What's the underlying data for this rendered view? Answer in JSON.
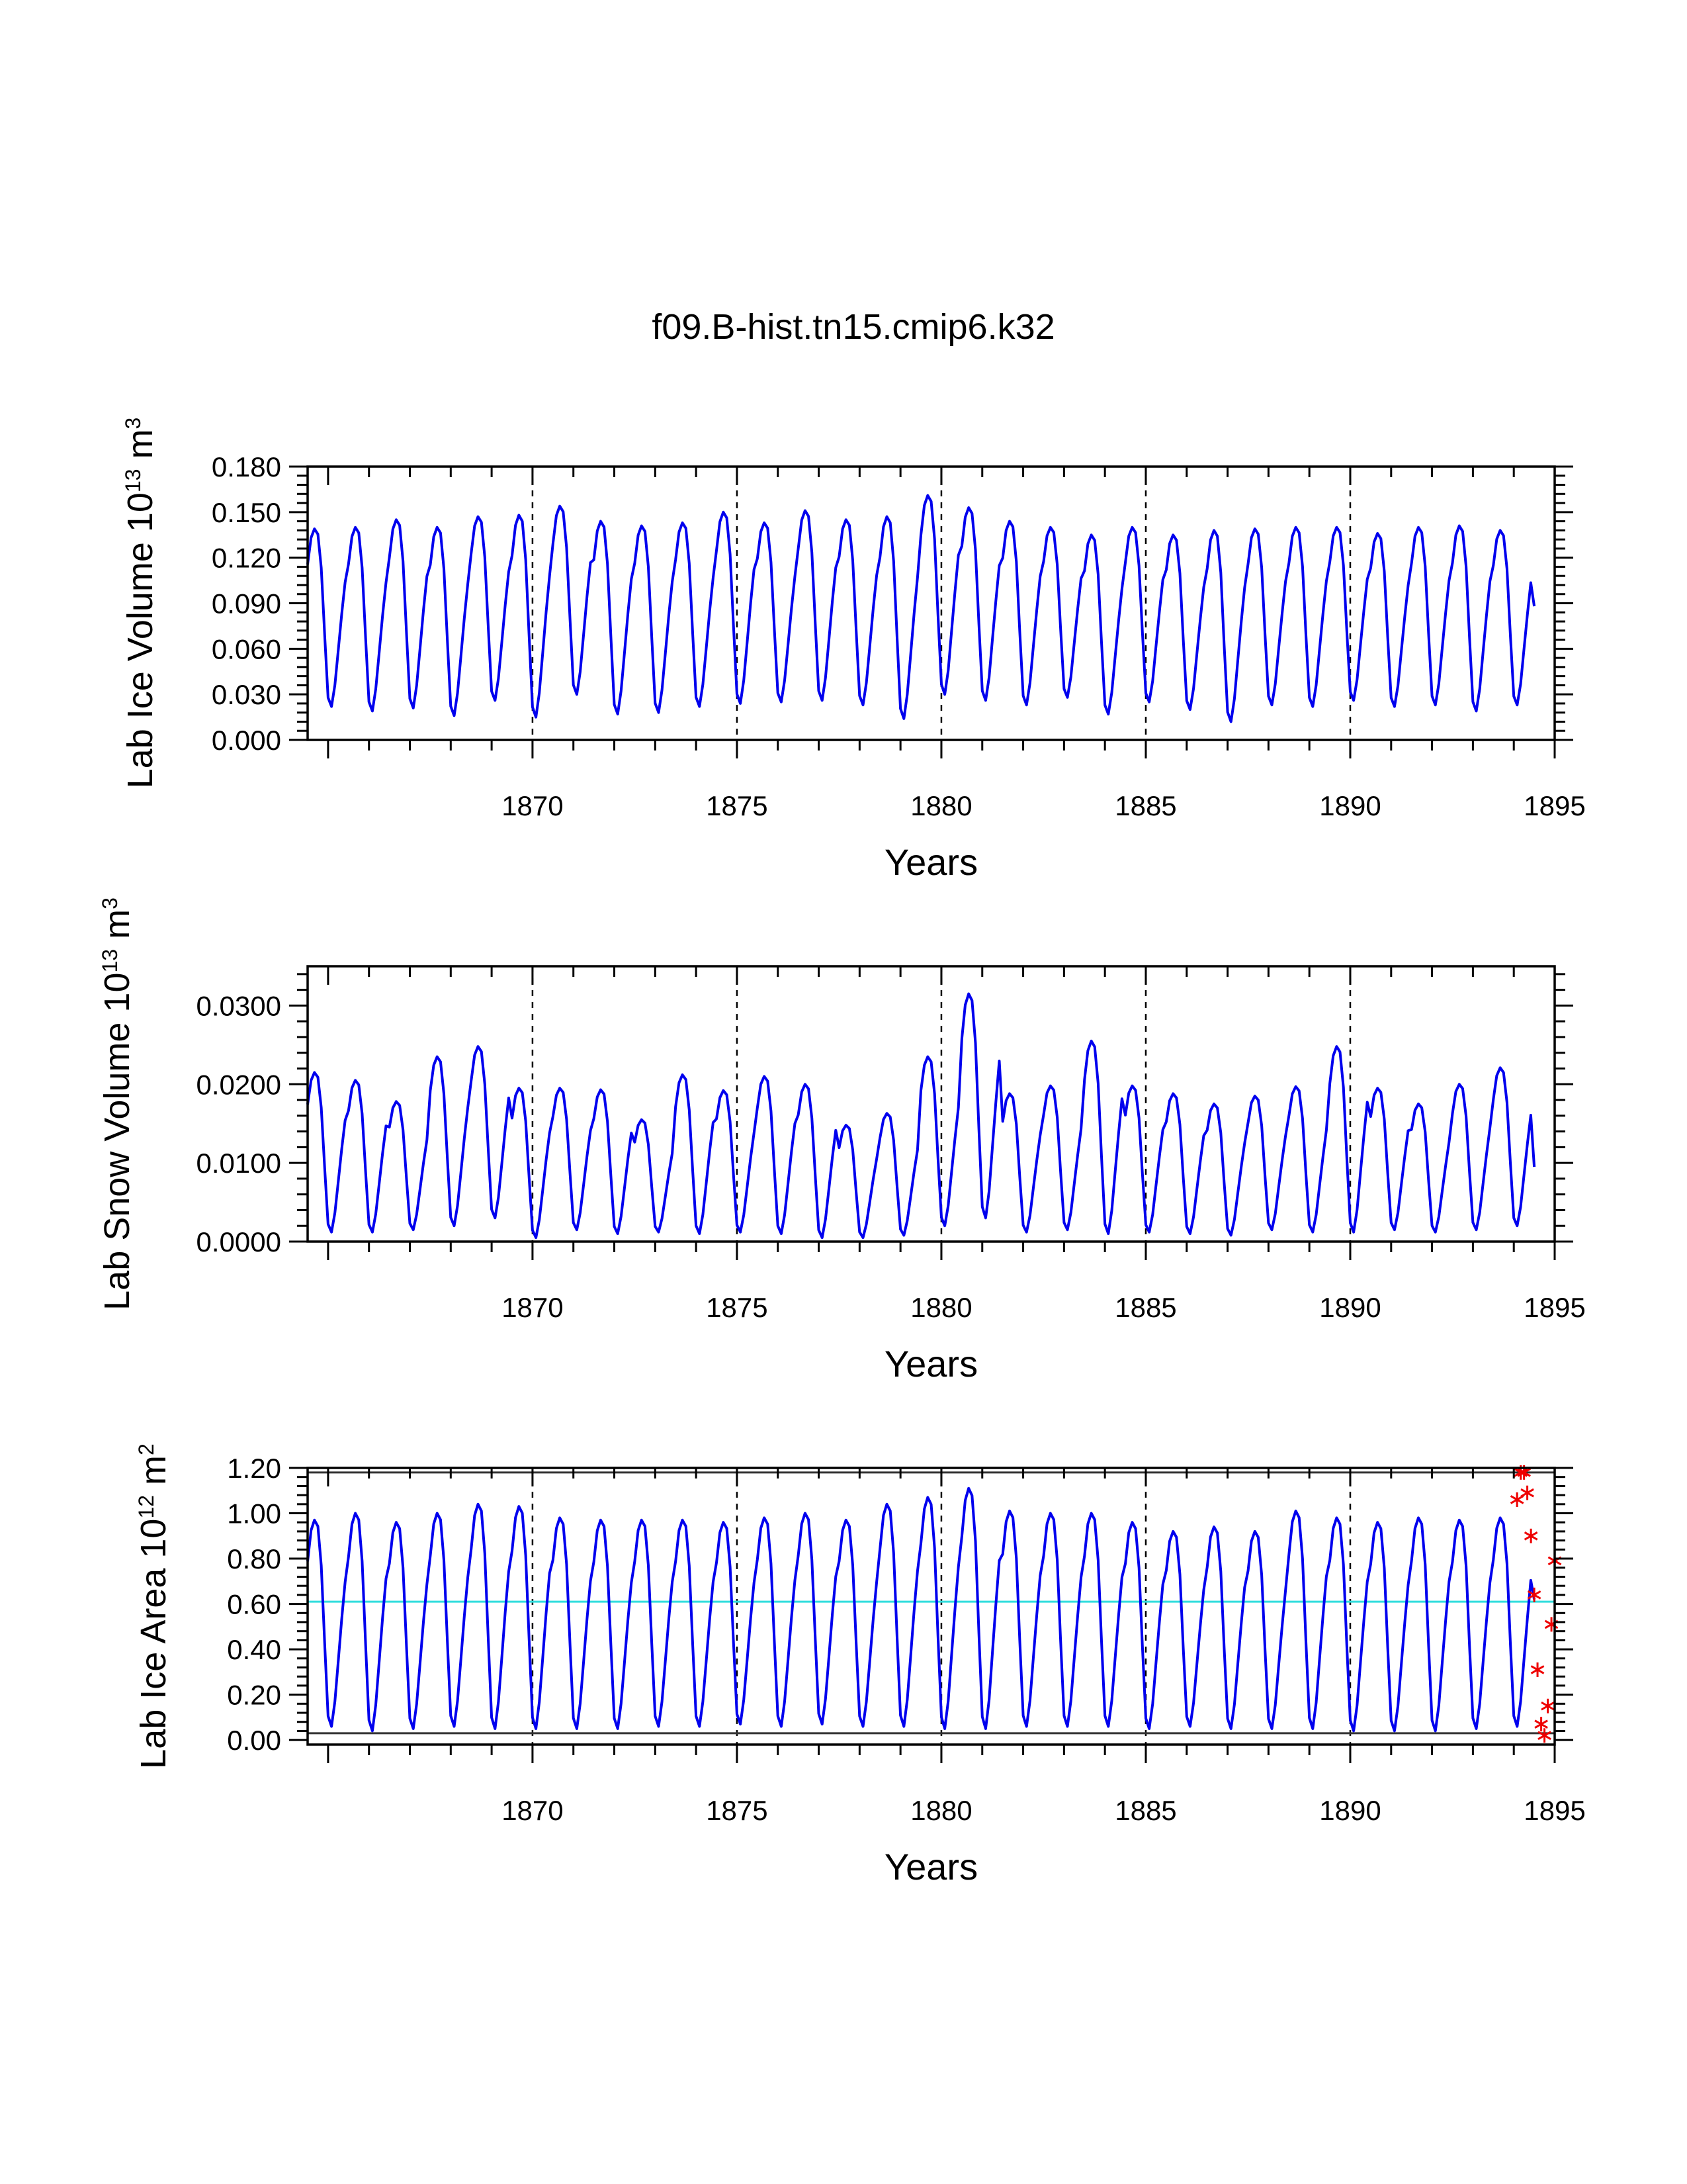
{
  "figure": {
    "title": "f09.B-hist.tn15.cmip6.k32"
  },
  "chart_data": [
    {
      "type": "line",
      "ylabel": {
        "base": "Lab Ice Volume 10",
        "exp": "13",
        "unit": " m",
        "unit_exp": "3"
      },
      "xlabel": "Years",
      "xlim": [
        1864.5,
        1895
      ],
      "ylim": [
        0,
        0.18
      ],
      "x_ticks": [
        "1870",
        "1875",
        "1880",
        "1885",
        "1890",
        "1895"
      ],
      "y_ticks": [
        "0.000",
        "0.030",
        "0.060",
        "0.090",
        "0.120",
        "0.150",
        "0.180"
      ],
      "y_tick_values": [
        0,
        0.03,
        0.06,
        0.09,
        0.12,
        0.15,
        0.18
      ],
      "grid": "dashed vertical lines at 1870, 1875, 1880, 1885, 1890",
      "series": [
        {
          "name": "Lab Ice Volume",
          "color": "#0000ee",
          "start_year": 1864.5,
          "annual_max": [
            0.139,
            0.14,
            0.145,
            0.14,
            0.147,
            0.148,
            0.154,
            0.144,
            0.141,
            0.143,
            0.15,
            0.143,
            0.151,
            0.145,
            0.147,
            0.161,
            0.153,
            0.144,
            0.14,
            0.135,
            0.14,
            0.135,
            0.138,
            0.139,
            0.14,
            0.14,
            0.136,
            0.14,
            0.141,
            0.138
          ],
          "annual_min": [
            0.022,
            0.019,
            0.021,
            0.016,
            0.026,
            0.015,
            0.03,
            0.017,
            0.018,
            0.022,
            0.024,
            0.025,
            0.026,
            0.023,
            0.014,
            0.03,
            0.026,
            0.023,
            0.028,
            0.017,
            0.025,
            0.02,
            0.012,
            0.023,
            0.022,
            0.026,
            0.022,
            0.023,
            0.019,
            0.023
          ],
          "end_value": 0.088
        }
      ]
    },
    {
      "type": "line",
      "ylabel": {
        "base": "Lab Snow Volume 10",
        "exp": "13",
        "unit": " m",
        "unit_exp": "3"
      },
      "xlabel": "Years",
      "xlim": [
        1864.5,
        1895
      ],
      "ylim": [
        0,
        0.035
      ],
      "x_ticks": [
        "1870",
        "1875",
        "1880",
        "1885",
        "1890",
        "1895"
      ],
      "y_ticks": [
        "0.0000",
        "0.0100",
        "0.0200",
        "0.0300"
      ],
      "y_tick_values": [
        0,
        0.01,
        0.02,
        0.03
      ],
      "grid": "dashed vertical lines at 1870, 1875, 1880, 1885, 1890",
      "series": [
        {
          "name": "Lab Snow Volume",
          "color": "#0000ee",
          "start_year": 1864.5,
          "annual_max": [
            0.0215,
            0.0205,
            0.0178,
            0.0235,
            0.0248,
            0.0195,
            0.0195,
            0.0193,
            0.0155,
            0.0212,
            0.0192,
            0.021,
            0.02,
            0.0148,
            0.0163,
            0.0235,
            0.0315,
            0.0188,
            0.0198,
            0.0255,
            0.0198,
            0.0188,
            0.0175,
            0.0185,
            0.0197,
            0.0248,
            0.0195,
            0.0175,
            0.02,
            0.0221
          ],
          "annual_min": [
            0.0012,
            0.0012,
            0.0015,
            0.002,
            0.003,
            0.0005,
            0.0015,
            0.001,
            0.0012,
            0.001,
            0.0012,
            0.001,
            0.0005,
            0.0005,
            0.0008,
            0.002,
            0.003,
            0.0012,
            0.0015,
            0.001,
            0.0012,
            0.001,
            0.0008,
            0.0015,
            0.0012,
            0.0012,
            0.0015,
            0.0012,
            0.0015,
            0.002
          ],
          "end_value": 0.0095
        }
      ]
    },
    {
      "type": "line",
      "ylabel": {
        "base": "Lab Ice Area 10",
        "exp": "12",
        "unit": " m",
        "unit_exp": "2"
      },
      "xlabel": "Years",
      "xlim": [
        1864.5,
        1895
      ],
      "ylim": [
        -0.02,
        1.2
      ],
      "x_ticks": [
        "1870",
        "1875",
        "1880",
        "1885",
        "1890",
        "1895"
      ],
      "y_ticks": [
        "0.00",
        "0.20",
        "0.40",
        "0.60",
        "0.80",
        "1.00",
        "1.20"
      ],
      "y_tick_values": [
        0,
        0.2,
        0.4,
        0.6,
        0.8,
        1.0,
        1.2
      ],
      "grid": "dashed vertical lines at 1870, 1875, 1880, 1885, 1890",
      "reference_lines": [
        {
          "name": "upper-bound-line",
          "y": 1.18,
          "color": "#333333"
        },
        {
          "name": "lower-bound-line",
          "y": 0.03,
          "color": "#333333"
        },
        {
          "name": "mean-line",
          "y": 0.61,
          "color": "#33dddd"
        }
      ],
      "series": [
        {
          "name": "Lab Ice Area",
          "color": "#0000ee",
          "start_year": 1864.5,
          "annual_max": [
            0.97,
            1.0,
            0.96,
            1.0,
            1.04,
            1.03,
            0.98,
            0.97,
            0.97,
            0.97,
            0.96,
            0.98,
            1.0,
            0.97,
            1.04,
            1.07,
            1.11,
            1.01,
            1.0,
            1.0,
            0.96,
            0.92,
            0.94,
            0.92,
            1.01,
            0.98,
            0.96,
            0.98,
            0.97,
            0.98
          ],
          "annual_min": [
            0.06,
            0.04,
            0.05,
            0.06,
            0.05,
            0.05,
            0.05,
            0.05,
            0.06,
            0.06,
            0.07,
            0.06,
            0.07,
            0.06,
            0.06,
            0.05,
            0.05,
            0.06,
            0.06,
            0.06,
            0.05,
            0.06,
            0.05,
            0.05,
            0.05,
            0.04,
            0.04,
            0.04,
            0.05,
            0.06
          ],
          "end_value": 0.62
        },
        {
          "name": "Obs markers",
          "type": "scatter",
          "marker": "asterisk",
          "color": "#ee0000",
          "points": [
            [
              1894.08,
              1.06
            ],
            [
              1894.17,
              1.18
            ],
            [
              1894.25,
              1.18
            ],
            [
              1894.33,
              1.09
            ],
            [
              1894.42,
              0.9
            ],
            [
              1894.5,
              0.64
            ],
            [
              1894.58,
              0.31
            ],
            [
              1894.67,
              0.07
            ],
            [
              1894.75,
              0.02
            ],
            [
              1894.83,
              0.15
            ],
            [
              1894.92,
              0.51
            ],
            [
              1895.0,
              0.79
            ]
          ]
        }
      ]
    }
  ]
}
